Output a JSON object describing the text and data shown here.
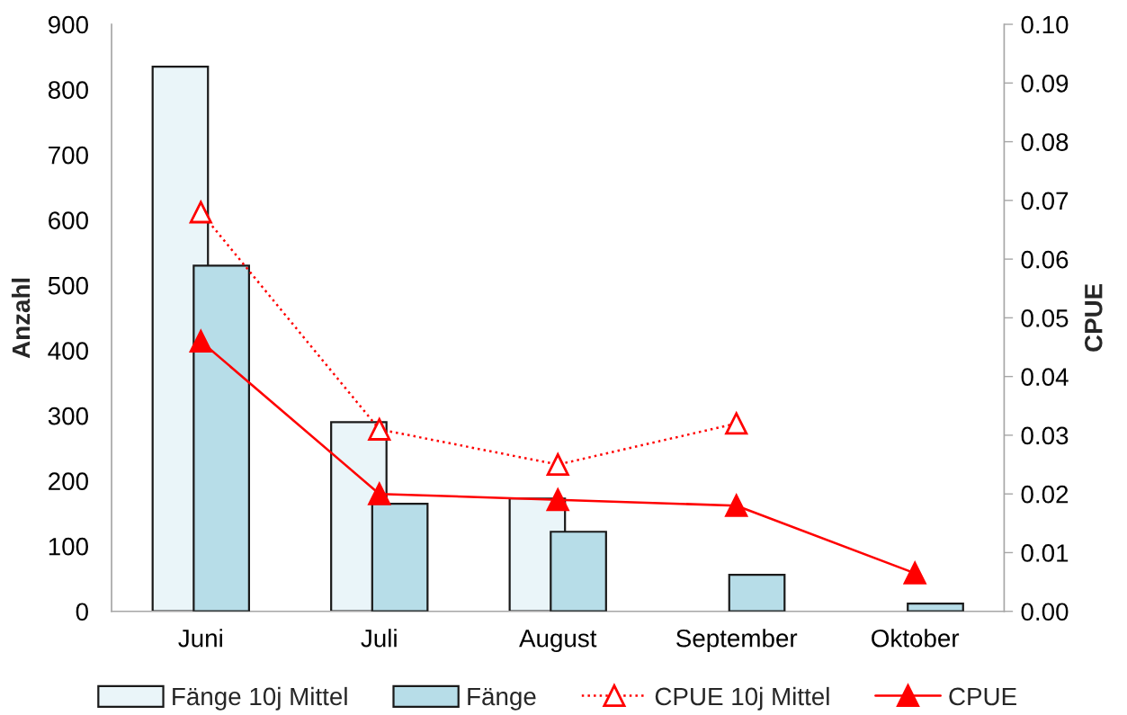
{
  "chart_data": {
    "type": "bar",
    "ylabel": "Anzahl",
    "y2label": "CPUE",
    "categories": [
      "Juni",
      "Juli",
      "August",
      "September",
      "Oktober"
    ],
    "series": [
      {
        "name": "Fänge 10j Mittel",
        "color": "#eaf5f9",
        "values": [
          835,
          290,
          173,
          null,
          null
        ]
      },
      {
        "name": "Fänge",
        "color": "#b7dde8",
        "values": [
          530,
          165,
          122,
          56,
          12
        ]
      },
      {
        "name": "CPUE 10j Mittel",
        "type": "line",
        "axis": "y2",
        "color": "#ff0000",
        "line_style": "dotted",
        "marker": "triangle",
        "values": [
          0.068,
          0.031,
          0.025,
          0.032,
          null
        ]
      },
      {
        "name": "CPUE",
        "type": "line",
        "axis": "y2",
        "color": "#ff0000",
        "line_style": "solid",
        "marker": "triangle",
        "values": [
          0.046,
          0.02,
          0.019,
          0.018,
          0.0065
        ]
      }
    ],
    "ylim": [
      0,
      900
    ],
    "yticks": [
      0,
      100,
      200,
      300,
      400,
      500,
      600,
      700,
      800,
      900
    ],
    "y2lim": [
      0,
      0.1
    ],
    "y2ticks": [
      {
        "value": 0,
        "label": "0.00"
      },
      0.01,
      0.02,
      0.03,
      0.04,
      0.05,
      0.06,
      0.07,
      0.08,
      0.09,
      {
        "value": 0.1,
        "label": "0.10"
      }
    ],
    "grid": false,
    "legend": "bottom"
  }
}
